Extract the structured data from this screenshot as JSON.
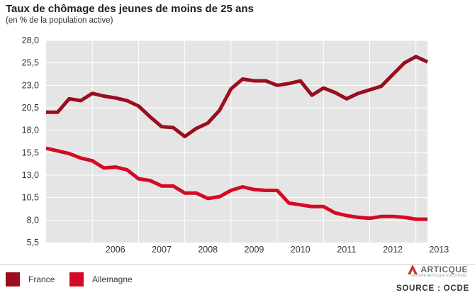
{
  "header": {
    "title": "Taux de chômage des jeunes de moins de 25 ans",
    "subtitle": "(en % de la population active)"
  },
  "footer": {
    "logo_text": "ARTICQUE",
    "logo_tagline": "GROUPE ARTICQUE SOLUTIONS",
    "source": "SOURCE : OCDE"
  },
  "colors": {
    "France": "#9a0d1f",
    "Allemagne": "#d40a24",
    "plot_background": "#e5e5e5",
    "grid": "#ffffff"
  },
  "chart_data": {
    "type": "line",
    "title": "Taux de chômage des jeunes de moins de 25 ans",
    "subtitle": "(en % de la population active)",
    "ylim": [
      5.5,
      28.0
    ],
    "y_ticks": [
      "5,5",
      "8,0",
      "10,5",
      "13,0",
      "15,5",
      "18,0",
      "20,5",
      "23,0",
      "25,5",
      "28,0"
    ],
    "x_range": [
      2005.0,
      2013.25
    ],
    "x_ticks": [
      "2006",
      "2007",
      "2008",
      "2009",
      "2010",
      "2011",
      "2012",
      "2013"
    ],
    "grid": true,
    "legend": "bottom",
    "x": [
      2005.0,
      2005.25,
      2005.5,
      2005.75,
      2006.0,
      2006.25,
      2006.5,
      2006.75,
      2007.0,
      2007.25,
      2007.5,
      2007.75,
      2008.0,
      2008.25,
      2008.5,
      2008.75,
      2009.0,
      2009.25,
      2009.5,
      2009.75,
      2010.0,
      2010.25,
      2010.5,
      2010.75,
      2011.0,
      2011.25,
      2011.5,
      2011.75,
      2012.0,
      2012.25,
      2012.5,
      2012.75,
      2013.0,
      2013.25
    ],
    "series": [
      {
        "name": "France",
        "values": [
          20.0,
          20.0,
          21.5,
          21.3,
          22.1,
          21.8,
          21.6,
          21.3,
          20.7,
          19.5,
          18.4,
          18.3,
          17.3,
          18.2,
          18.8,
          20.2,
          22.6,
          23.7,
          23.5,
          23.5,
          23.0,
          23.2,
          23.5,
          21.9,
          22.7,
          22.2,
          21.5,
          22.1,
          22.5,
          22.9,
          24.2,
          25.5,
          26.2,
          25.6
        ]
      },
      {
        "name": "Allemagne",
        "values": [
          16.0,
          15.7,
          15.4,
          14.9,
          14.6,
          13.8,
          13.9,
          13.6,
          12.6,
          12.4,
          11.8,
          11.8,
          11.0,
          11.0,
          10.4,
          10.6,
          11.3,
          11.7,
          11.4,
          11.3,
          11.3,
          9.9,
          9.7,
          9.5,
          9.5,
          8.8,
          8.5,
          8.3,
          8.2,
          8.4,
          8.4,
          8.3,
          8.1,
          8.1
        ]
      }
    ]
  }
}
